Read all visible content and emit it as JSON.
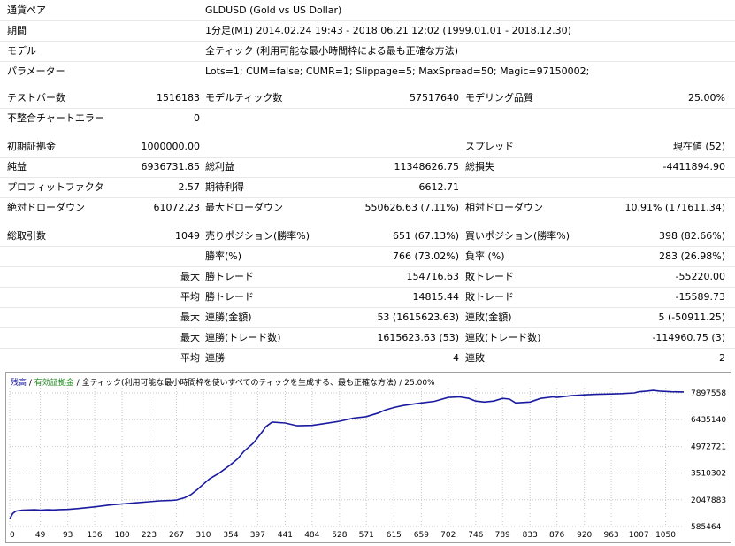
{
  "report": {
    "symbol": {
      "label": "通貨ペア",
      "value": "GLDUSD (Gold vs US Dollar)"
    },
    "period": {
      "label": "期間",
      "value": "1分足(M1) 2014.02.24 19:43 - 2018.06.21 12:02 (1999.01.01 - 2018.12.30)"
    },
    "model": {
      "label": "モデル",
      "value": "全ティック (利用可能な最小時間枠による最も正確な方法)"
    },
    "parameters": {
      "label": "パラメーター",
      "value": "Lots=1; CUM=false; CUMR=1; Slippage=5; MaxSpread=50; Magic=97150002;"
    },
    "bars": {
      "label": "テストバー数",
      "value": "1516183"
    },
    "ticks": {
      "label": "モデルティック数",
      "value": "57517640"
    },
    "quality": {
      "label": "モデリング品質",
      "value": "25.00%"
    },
    "mismatch": {
      "label": "不整合チャートエラー",
      "value": "0"
    },
    "deposit": {
      "label": "初期証拠金",
      "value": "1000000.00"
    },
    "spread": {
      "label": "スプレッド",
      "value": "現在値 (52)"
    },
    "net_profit": {
      "label": "純益",
      "value": "6936731.85"
    },
    "gross_profit": {
      "label": "総利益",
      "value": "11348626.75"
    },
    "gross_loss": {
      "label": "総損失",
      "value": "-4411894.90"
    },
    "profit_factor": {
      "label": "プロフィットファクタ",
      "value": "2.57"
    },
    "expected_payoff": {
      "label": "期待利得",
      "value": "6612.71"
    },
    "abs_drawdown": {
      "label": "絶対ドローダウン",
      "value": "61072.23"
    },
    "max_drawdown": {
      "label": "最大ドローダウン",
      "value": "550626.63 (7.11%)"
    },
    "rel_drawdown": {
      "label": "相対ドローダウン",
      "value": "10.91% (171611.34)"
    },
    "total_trades": {
      "label": "総取引数",
      "value": "1049"
    },
    "short_positions": {
      "label": "売りポジション(勝率%)",
      "value": "651 (67.13%)"
    },
    "long_positions": {
      "label": "買いポジション(勝率%)",
      "value": "398 (82.66%)"
    },
    "profit_trades": {
      "label": "勝率(%)",
      "value": "766 (73.02%)"
    },
    "loss_trades": {
      "label": "負率 (%)",
      "value": "283 (26.98%)"
    },
    "largest_profit": {
      "pre": "最大",
      "label": "勝トレード",
      "value": "154716.63"
    },
    "largest_loss": {
      "label": "敗トレード",
      "value": "-55220.00"
    },
    "average_profit": {
      "pre": "平均",
      "label": "勝トレード",
      "value": "14815.44"
    },
    "average_loss": {
      "label": "敗トレード",
      "value": "-15589.73"
    },
    "max_consec_wins": {
      "pre": "最大",
      "label": "連勝(金額)",
      "value": "53 (1615623.63)"
    },
    "max_consec_losses": {
      "label": "連敗(金額)",
      "value": "5 (-50911.25)"
    },
    "max_consec_profit": {
      "pre": "最大",
      "label": "連勝(トレード数)",
      "value": "1615623.63 (53)"
    },
    "max_consec_loss": {
      "label": "連敗(トレード数)",
      "value": "-114960.75 (3)"
    },
    "avg_consec_wins": {
      "pre": "平均",
      "label": "連勝",
      "value": "4"
    },
    "avg_consec_losses": {
      "label": "連敗",
      "value": "2"
    }
  },
  "graph": {
    "legend": {
      "balance": "残高",
      "sep1": " / ",
      "equity": "有効証拠金",
      "sep2": " / ",
      "model": "全ティック(利用可能な最小時間枠を使いすべてのティックを生成する、最も正確な方法)",
      "sep3": " / ",
      "quality": "25.00%"
    },
    "colors": {
      "balance": "#1a1aa0",
      "equity": "#1e8a1e",
      "grid": "#c8c8c8"
    }
  },
  "chart_data": {
    "type": "line",
    "x_ticks": [
      "0",
      "49",
      "93",
      "136",
      "180",
      "223",
      "267",
      "310",
      "354",
      "397",
      "441",
      "484",
      "528",
      "571",
      "615",
      "659",
      "702",
      "746",
      "789",
      "833",
      "876",
      "920",
      "963",
      "1007",
      "1050"
    ],
    "y_ticks": [
      "585464",
      "2047883",
      "3510302",
      "4972721",
      "6435140",
      "7897558"
    ],
    "xlim": [
      0,
      1079
    ],
    "ylim": [
      585464,
      8140000
    ],
    "series": [
      {
        "x": [
          0,
          5,
          10,
          20,
          30,
          40,
          50,
          60,
          70,
          80,
          93,
          110,
          136,
          160,
          180,
          200,
          223,
          240,
          260,
          267,
          280,
          290,
          300,
          310,
          320,
          335,
          345,
          354,
          365,
          375,
          390,
          397,
          405,
          410,
          420,
          441,
          460,
          484,
          500,
          528,
          550,
          571,
          590,
          600,
          615,
          630,
          640,
          659,
          680,
          702,
          720,
          735,
          746,
          760,
          775,
          789,
          800,
          810,
          833,
          850,
          870,
          876,
          900,
          920,
          940,
          963,
          980,
          1000,
          1007,
          1020,
          1030,
          1040,
          1060,
          1079
        ],
        "y": [
          1000000,
          1300000,
          1430000,
          1480000,
          1490000,
          1500000,
          1480000,
          1500000,
          1490000,
          1510000,
          1520000,
          1570000,
          1660000,
          1760000,
          1820000,
          1880000,
          1940000,
          1990000,
          2020000,
          2040000,
          2160000,
          2330000,
          2600000,
          2900000,
          3200000,
          3500000,
          3750000,
          3980000,
          4300000,
          4700000,
          5150000,
          5450000,
          5800000,
          6050000,
          6300000,
          6250000,
          6100000,
          6120000,
          6200000,
          6350000,
          6520000,
          6600000,
          6800000,
          6950000,
          7100000,
          7210000,
          7260000,
          7350000,
          7440000,
          7650000,
          7680000,
          7600000,
          7450000,
          7400000,
          7450000,
          7600000,
          7560000,
          7350000,
          7400000,
          7600000,
          7680000,
          7650000,
          7750000,
          7790000,
          7820000,
          7840000,
          7860000,
          7900000,
          7960000,
          8000000,
          8040000,
          8000000,
          7960000,
          7950000
        ]
      }
    ]
  }
}
